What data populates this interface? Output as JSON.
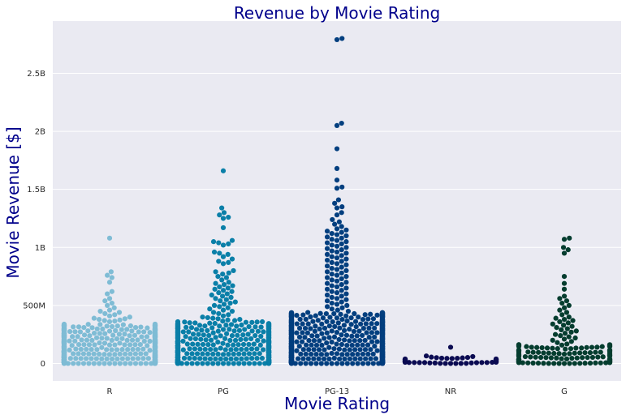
{
  "chart_data": {
    "type": "scatter",
    "subtype": "swarm",
    "title": "Revenue by Movie Rating",
    "xlabel": "Movie Rating",
    "ylabel": "Movie Revenue [$]",
    "categories": [
      "R",
      "PG",
      "PG-13",
      "NR",
      "G"
    ],
    "yticks": [
      0,
      500000000,
      1000000000,
      1500000000,
      2000000000,
      2500000000
    ],
    "yticklabels": [
      "0",
      "500M",
      "1B",
      "1.5B",
      "2B",
      "2.5B"
    ],
    "ylim": [
      -150000000,
      2950000000
    ],
    "grid": true,
    "colors": {
      "R": "#7fbcd5",
      "PG": "#0a7fa8",
      "PG-13": "#033f7f",
      "NR": "#0b0b52",
      "G": "#053d2f",
      "background": "#eaeaf2",
      "title_text": "#00008b"
    },
    "series": [
      {
        "category": "R",
        "outliers": [
          1080000000,
          790000000,
          760000000,
          740000000,
          700000000,
          620000000,
          600000000,
          560000000,
          540000000,
          520000000,
          500000000,
          480000000,
          460000000,
          450000000,
          440000000,
          430000000,
          420000000,
          410000000,
          400000000,
          390000000,
          385000000,
          380000000,
          375000000,
          370000000,
          365000000,
          360000000
        ],
        "bulk": {
          "count": 720,
          "min": 0,
          "max": 340000000
        }
      },
      {
        "category": "PG",
        "outliers": [
          1660000000,
          1340000000,
          1300000000,
          1280000000,
          1260000000,
          1250000000,
          1170000000,
          1060000000,
          1050000000,
          1040000000,
          1030000000,
          1020000000,
          960000000,
          950000000,
          940000000,
          920000000,
          900000000,
          880000000,
          870000000,
          860000000,
          800000000,
          790000000,
          780000000,
          770000000,
          750000000,
          740000000,
          720000000,
          700000000,
          690000000,
          680000000,
          670000000,
          660000000,
          650000000,
          640000000,
          630000000,
          620000000,
          610000000,
          600000000,
          590000000,
          580000000,
          570000000,
          560000000,
          550000000,
          540000000,
          530000000,
          520000000,
          510000000,
          500000000,
          490000000,
          480000000,
          470000000,
          460000000,
          450000000,
          440000000,
          430000000,
          420000000,
          410000000,
          400000000,
          395000000,
          390000000,
          385000000,
          380000000,
          375000000,
          370000000,
          365000000,
          360000000,
          355000000
        ],
        "bulk": {
          "count": 650,
          "min": 0,
          "max": 360000000
        }
      },
      {
        "category": "PG-13",
        "outliers": [
          2800000000,
          2790000000,
          2070000000,
          2050000000,
          1850000000,
          1680000000,
          1580000000,
          1520000000,
          1510000000,
          1410000000,
          1380000000,
          1350000000,
          1340000000,
          1300000000,
          1280000000,
          1240000000,
          1220000000,
          1200000000,
          1180000000,
          1160000000,
          1150000000,
          1140000000,
          1130000000,
          1120000000,
          1110000000,
          1100000000,
          1090000000,
          1080000000,
          1070000000,
          1060000000,
          1050000000,
          1040000000,
          1030000000,
          1020000000,
          1010000000,
          1000000000,
          990000000,
          980000000,
          970000000,
          960000000,
          950000000,
          940000000,
          930000000,
          920000000,
          910000000,
          900000000,
          890000000,
          880000000,
          870000000,
          860000000,
          850000000,
          840000000,
          830000000,
          820000000,
          810000000,
          800000000,
          790000000,
          780000000,
          770000000,
          760000000,
          750000000,
          740000000,
          730000000,
          720000000,
          710000000,
          700000000,
          690000000,
          680000000,
          670000000,
          660000000,
          650000000,
          640000000,
          630000000,
          620000000,
          610000000,
          600000000,
          590000000,
          580000000,
          570000000,
          560000000,
          550000000,
          540000000,
          530000000,
          520000000,
          510000000,
          500000000,
          490000000,
          480000000,
          470000000,
          460000000,
          450000000
        ],
        "bulk": {
          "count": 1150,
          "min": 0,
          "max": 440000000
        }
      },
      {
        "category": "NR",
        "outliers": [
          140000000,
          65000000,
          60000000,
          55000000,
          52000000,
          50000000,
          48000000,
          46000000,
          45000000,
          44000000,
          43000000
        ],
        "bulk": {
          "count": 48,
          "min": 0,
          "max": 40000000
        }
      },
      {
        "category": "G",
        "outliers": [
          1080000000,
          1070000000,
          1000000000,
          980000000,
          950000000,
          750000000,
          690000000,
          640000000,
          580000000,
          560000000,
          540000000,
          520000000,
          500000000,
          480000000,
          460000000,
          440000000,
          420000000,
          400000000,
          390000000,
          380000000,
          370000000,
          360000000,
          350000000,
          340000000,
          330000000,
          320000000,
          310000000,
          300000000,
          290000000,
          280000000,
          270000000,
          260000000,
          250000000,
          240000000,
          230000000,
          220000000,
          210000000,
          200000000,
          190000000,
          180000000
        ],
        "bulk": {
          "count": 140,
          "min": 0,
          "max": 170000000
        }
      }
    ]
  }
}
